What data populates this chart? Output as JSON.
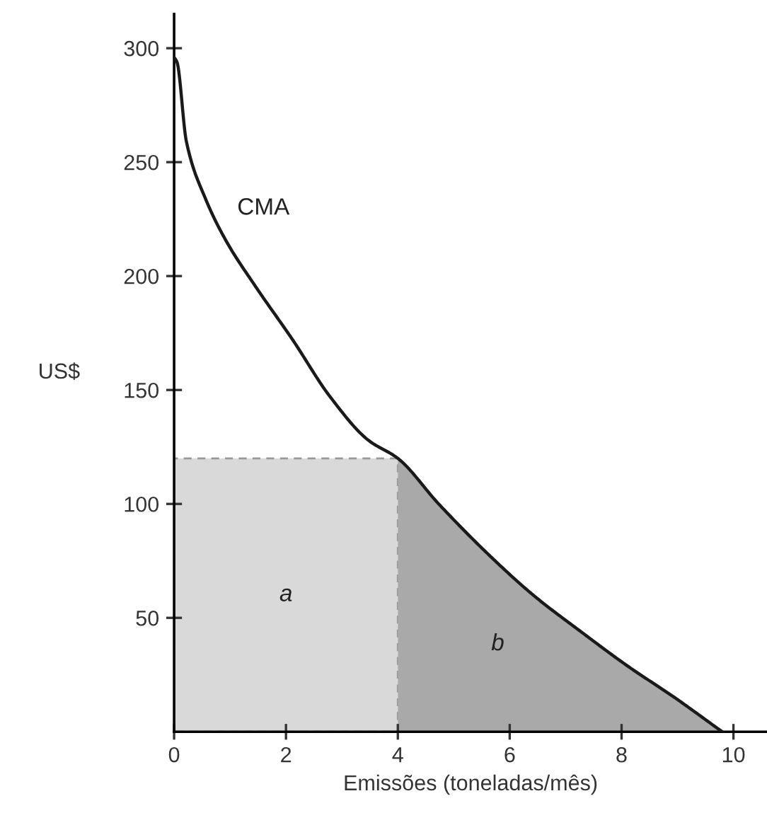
{
  "chart_data": {
    "type": "line",
    "xlabel": "Emissões (toneladas/mês)",
    "ylabel": "US$",
    "xlim": [
      0,
      10.6
    ],
    "ylim": [
      0,
      315
    ],
    "xticks": [
      0,
      2,
      4,
      6,
      8,
      10
    ],
    "yticks": [
      50,
      100,
      150,
      200,
      250,
      300
    ],
    "grid": false,
    "legend": false,
    "series": [
      {
        "type": "area",
        "name": "a",
        "color": "#d9d9d9",
        "line_style": "dashed",
        "x": [
          0,
          4
        ],
        "values": [
          120,
          120
        ]
      },
      {
        "type": "area",
        "name": "b",
        "color": "#a9a9a9",
        "x": [
          4,
          4.73,
          5.57,
          6.42,
          7.27,
          8.1,
          8.95,
          9.8
        ],
        "values": [
          120,
          100,
          79,
          60,
          44,
          29,
          15,
          0
        ]
      },
      {
        "name": "CMA",
        "color": "#1a1a1a",
        "x": [
          0,
          0.05,
          0.22,
          0.56,
          0.94,
          1.44,
          2.12,
          2.79,
          3.47,
          4,
          4.73,
          5.57,
          6.42,
          7.27,
          8.1,
          8.95,
          9.8
        ],
        "values": [
          296,
          294,
          259,
          234,
          215,
          196,
          172,
          147,
          128,
          120,
          100,
          79,
          60,
          44,
          29,
          15,
          0
        ]
      }
    ]
  }
}
